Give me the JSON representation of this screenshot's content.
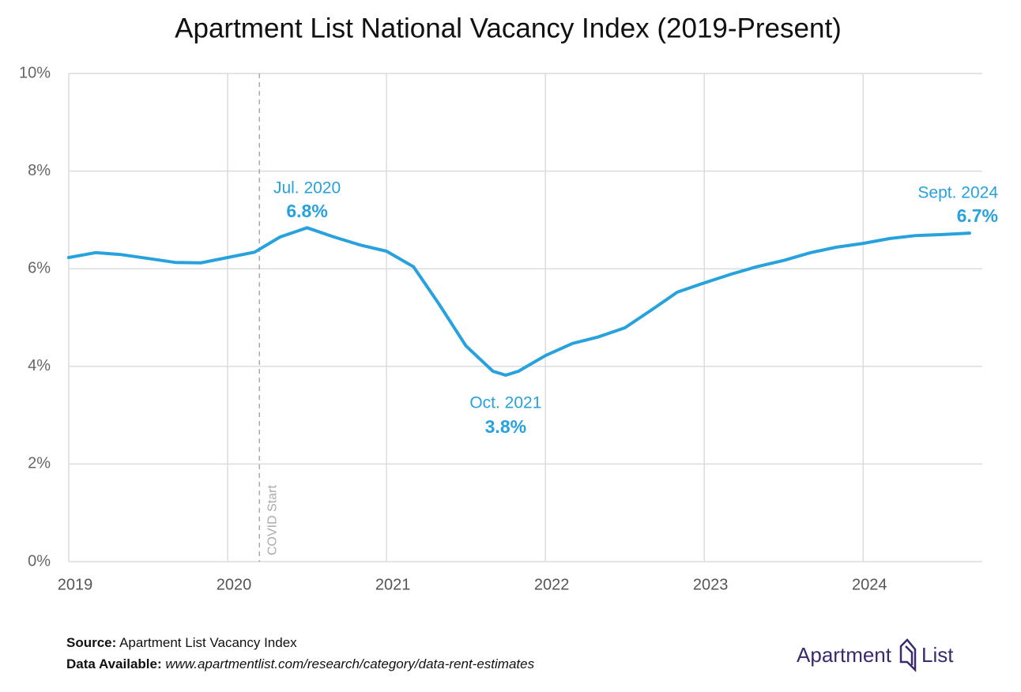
{
  "chart_data": {
    "type": "line",
    "title": "Apartment List National Vacancy Index (2019-Present)",
    "x": [
      2019.0,
      2019.17,
      2019.33,
      2019.5,
      2019.67,
      2019.83,
      2020.0,
      2020.17,
      2020.33,
      2020.5,
      2020.67,
      2020.83,
      2021.0,
      2021.17,
      2021.33,
      2021.5,
      2021.67,
      2021.75,
      2021.83,
      2022.0,
      2022.17,
      2022.33,
      2022.5,
      2022.67,
      2022.83,
      2023.0,
      2023.17,
      2023.33,
      2023.5,
      2023.67,
      2023.83,
      2024.0,
      2024.17,
      2024.33,
      2024.5,
      2024.67
    ],
    "series": [
      {
        "color": "#27a2dc",
        "values": [
          6.23,
          6.33,
          6.29,
          6.21,
          6.13,
          6.12,
          6.23,
          6.34,
          6.65,
          6.84,
          6.65,
          6.49,
          6.36,
          6.04,
          5.28,
          4.42,
          3.9,
          3.82,
          3.9,
          4.22,
          4.47,
          4.6,
          4.79,
          5.16,
          5.52,
          5.71,
          5.89,
          6.04,
          6.17,
          6.33,
          6.44,
          6.52,
          6.62,
          6.68,
          6.7,
          6.73
        ]
      }
    ],
    "xlim": [
      2019,
      2024.75
    ],
    "xticks": [
      2019,
      2020,
      2021,
      2022,
      2023,
      2024
    ],
    "ylim": [
      0,
      10
    ],
    "yticks": [
      {
        "value": 0,
        "label": "0%"
      },
      {
        "value": 2,
        "label": "2%"
      },
      {
        "value": 4,
        "label": "4%"
      },
      {
        "value": 6,
        "label": "6%"
      },
      {
        "value": 8,
        "label": "8%"
      },
      {
        "value": 10,
        "label": "10%"
      }
    ],
    "grid": true,
    "annotations": [
      {
        "x": 2020.5,
        "text": "Jul. 2020",
        "value": 6.8,
        "label": "6.8%"
      },
      {
        "x": 2021.75,
        "text": "Oct. 2021",
        "value": 3.8,
        "label": "3.8%"
      },
      {
        "x": 2024.67,
        "text": "Sept. 2024",
        "value": 6.7,
        "label": "6.7%"
      }
    ],
    "vline": {
      "x": 2020.2,
      "label": "COVID Start"
    }
  },
  "footer": {
    "source_label": "Source:",
    "source": "Apartment List Vacancy Index",
    "data_label": "Data Available:",
    "data_url": "www.apartmentlist.com/research/category/data-rent-estimates"
  },
  "logo": {
    "left": "Apartment",
    "right": "List"
  }
}
